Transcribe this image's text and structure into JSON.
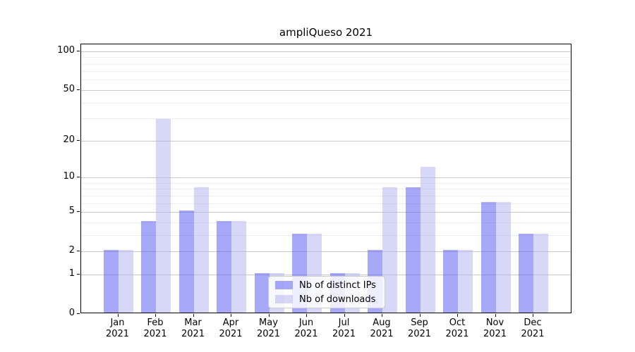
{
  "chart_data": {
    "type": "bar",
    "title": "ampliQueso 2021",
    "categories": [
      "Jan 2021",
      "Feb 2021",
      "Mar 2021",
      "Apr 2021",
      "May 2021",
      "Jun 2021",
      "Jul 2021",
      "Aug 2021",
      "Sep 2021",
      "Oct 2021",
      "Nov 2021",
      "Dec 2021"
    ],
    "series": [
      {
        "name": "Nb of distinct IPs",
        "color": "rgba(81,81,242,0.5)",
        "color_hex": "#a8a8f4",
        "values": [
          2,
          4,
          5,
          4,
          1,
          3,
          1,
          2,
          8,
          2,
          6,
          3
        ]
      },
      {
        "name": "Nb of downloads",
        "color": "rgba(175,175,240,0.5)",
        "color_hex": "#d7d7f7",
        "values": [
          2,
          29,
          8,
          4,
          1,
          3,
          1,
          8,
          12,
          2,
          6,
          3
        ]
      }
    ],
    "xlabel": "",
    "ylabel": "",
    "y_axis": {
      "scale": "log1p",
      "ticks": [
        0,
        1,
        2,
        5,
        10,
        20,
        50,
        100
      ],
      "minor_gridlines": [
        3,
        4,
        6,
        7,
        8,
        9,
        30,
        40,
        60,
        70,
        80,
        90
      ],
      "ylim": [
        0,
        112.8
      ]
    },
    "grid": true,
    "legend": {
      "position": "inside-lower-center",
      "entries": [
        "Nb of distinct IPs",
        "Nb of downloads"
      ]
    },
    "colors": {
      "major_grid": "#c9c9c9",
      "minor_grid": "#ececec",
      "spine": "#000000",
      "legend_border": "#cccccc"
    }
  }
}
